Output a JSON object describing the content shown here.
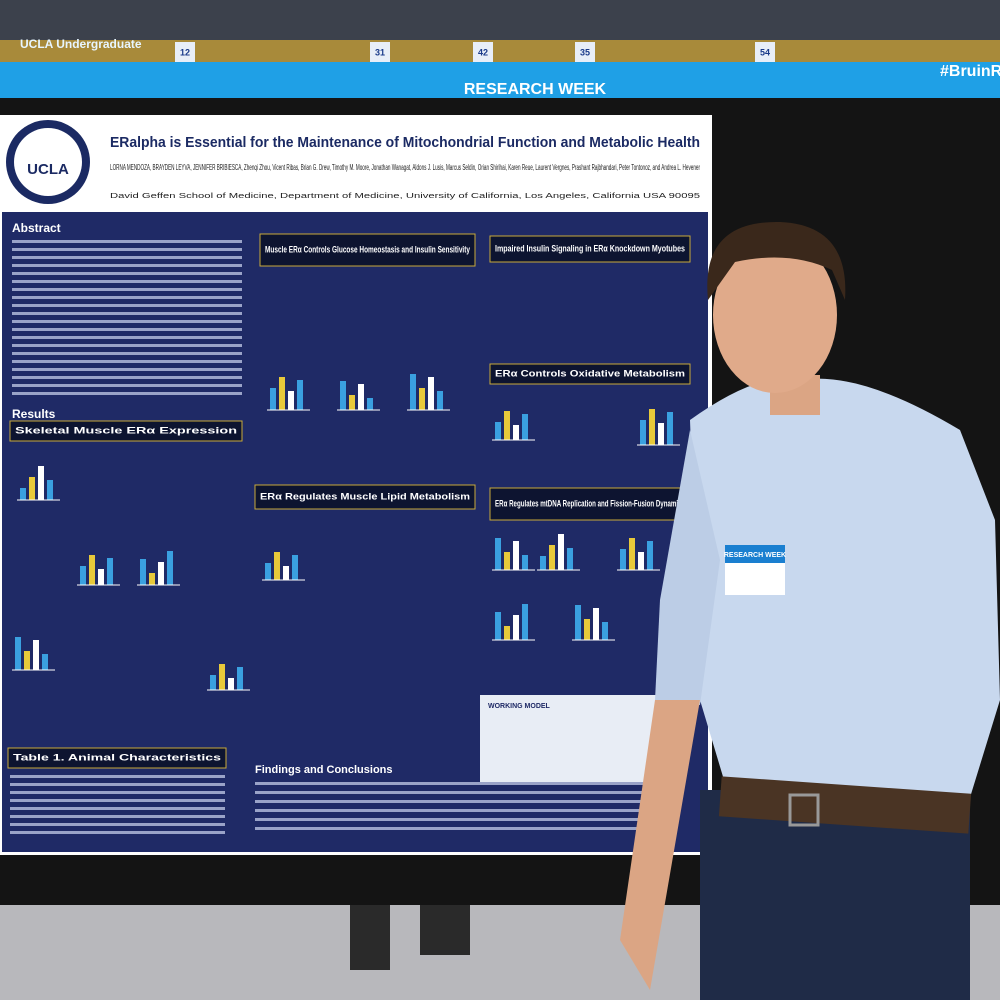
{
  "banner": {
    "left": "UCLA Undergraduate",
    "center": "RESEARCH WEEK",
    "right": "#BruinR"
  },
  "jerseys": [
    "12",
    "31",
    "42",
    "35",
    "54"
  ],
  "poster": {
    "logo": "UCLA",
    "title": "ERalpha is Essential for the Maintenance of Mitochondrial Function and Metabolic Health",
    "authors": "LORNA MENDOZA, BRAYDEN LEYVA, JENNIFER BRIBIESCA, Zhenqi Zhou, Vicent Ribas, Brian G. Drew, Timothy M. Moore, Jonathan Wanagat, Aldons J. Lusis, Marcus Seldin, Orian Shirihai, Karen Reue, Laurent Vergnes, Prashant Rajbhandari, Peter Tontonoz, and Andrea L. Hevener",
    "affiliation": "David Geffen School of Medicine, Department of Medicine, University of California, Los Angeles, California USA 90095",
    "abstract_title": "Abstract",
    "results_title": "Results",
    "sections": [
      "Skeletal Muscle ERα Expression",
      "Muscle ERα Controls Glucose Homeostasis and Insulin Sensitivity",
      "Impaired Insulin Signaling in ERα Knockdown Myotubes",
      "ERα Controls Oxidative Metabolism",
      "ERα Regulates Muscle Lipid Metabolism",
      "ERα Regulates mtDNA Replication and Fission-Fusion Dynamics",
      "Table 1. Animal Characteristics"
    ],
    "findings_title": "Findings and Conclusions",
    "working_model": "WORKING MODEL"
  },
  "badge": "RESEARCH WEEK"
}
